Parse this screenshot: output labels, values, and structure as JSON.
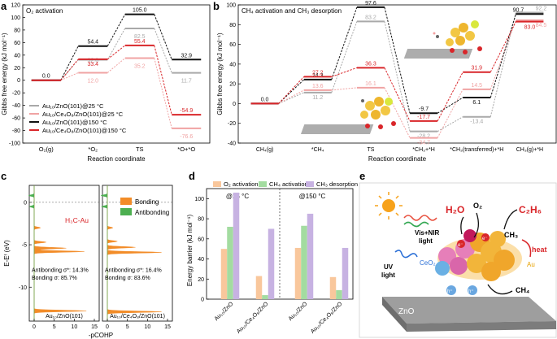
{
  "colors": {
    "gray": "#a9a9a9",
    "pink": "#f0a3a3",
    "black": "#111111",
    "red": "#d9262a",
    "o2": "#f9c79c",
    "ch4": "#a3dca0",
    "ch3": "#c7b2e2",
    "bonding": "#f28c28",
    "antibonding": "#4caf50"
  },
  "panels": {
    "a": "a",
    "b": "b",
    "c": "c",
    "d": "d",
    "e": "e"
  },
  "chart_data": [
    {
      "panel": "a",
      "type": "line",
      "title": "O₂ activation",
      "xlabel": "Reaction coordinate",
      "ylabel": "Gibbs free energy (kJ mol⁻¹)",
      "ylim": [
        -100,
        120
      ],
      "yticks": [
        -100,
        -80,
        -60,
        -40,
        -20,
        0,
        20,
        40,
        60,
        80,
        100,
        120
      ],
      "categories": [
        "O₂(g)",
        "*O₂",
        "TS",
        "*O+*O"
      ],
      "series": [
        {
          "name": "Au₁₀/ZnO(101)@25 °C",
          "key": "gray",
          "values": [
            0.0,
            32.6,
            82.5,
            11.7
          ],
          "labels": [
            "",
            "32.6",
            "82.5",
            "11.7"
          ]
        },
        {
          "name": "Au₁₀/Ce₄O₈/ZnO(101)@25 °C",
          "key": "pink",
          "values": [
            0.0,
            12.0,
            35.2,
            -76.6
          ],
          "labels": [
            "",
            "12.0",
            "35.2",
            "-76.6"
          ]
        },
        {
          "name": "Au₁₀/ZnO(101)@150 °C",
          "key": "black",
          "values": [
            0.0,
            54.4,
            105.0,
            32.9
          ],
          "labels": [
            "0.0",
            "54.4",
            "105.0",
            "32.9"
          ]
        },
        {
          "name": "Au₁₀/Ce₄O₈/ZnO(101)@150 °C",
          "key": "red",
          "values": [
            0.0,
            33.4,
            55.4,
            -54.9
          ],
          "labels": [
            "",
            "33.4",
            "55.4",
            "-54.9"
          ]
        }
      ]
    },
    {
      "panel": "b",
      "type": "line",
      "title": "CH₄ activation and CH₃ desorption",
      "xlabel": "Reaction coordinate",
      "ylabel": "Gibbs free energy (kJ mol⁻¹)",
      "ylim": [
        -40,
        100
      ],
      "yticks": [
        -40,
        -20,
        0,
        20,
        40,
        60,
        80,
        100
      ],
      "categories": [
        "CH₄(g)",
        "*CH₄",
        "TS",
        "*CH₃+*H",
        "*CH₃(transferred)+*H",
        "CH₃(g)+*H"
      ],
      "series": [
        {
          "name": "Au₁₀/ZnO(101)@25 °C",
          "key": "gray",
          "values": [
            0.0,
            11.2,
            83.2,
            -28.2,
            -13.4,
            92.2
          ],
          "labels": [
            "",
            "11.2",
            "83.2",
            "-28.2",
            "-13.4",
            "92.2"
          ]
        },
        {
          "name": "Au₁₀/Ce₄O₈/ZnO(101)@25 °C",
          "key": "pink",
          "values": [
            0.0,
            13.6,
            16.1,
            -34.7,
            14.5,
            84.5
          ],
          "labels": [
            "",
            "13.6",
            "16.1",
            "-34.7",
            "14.5",
            "84.5"
          ]
        },
        {
          "name": "Au₁₀/ZnO(101)@150 °C",
          "key": "black",
          "values": [
            0.0,
            24.3,
            97.6,
            -9.7,
            6.1,
            90.7
          ],
          "labels": [
            "0.0",
            "24.3",
            "97.6",
            "-9.7",
            "6.1",
            "90.7"
          ]
        },
        {
          "name": "Au₁₀/Ce₄O₈/ZnO(101)@150 °C",
          "key": "red",
          "values": [
            0.0,
            27.2,
            36.3,
            -17.7,
            31.9,
            83.0
          ],
          "labels": [
            "",
            "27.2",
            "36.3",
            "-17.7",
            "31.9",
            "83.0"
          ]
        }
      ]
    },
    {
      "panel": "c",
      "type": "line",
      "title": "H₃C-Au",
      "xlabel": "-pCOHP",
      "ylabel": "E-Eᶠ (eV)",
      "ylim": [
        -14,
        2
      ],
      "yticks": [
        0,
        -5,
        -10
      ],
      "xticks": [
        0,
        5,
        10,
        15
      ],
      "legend": [
        "Bonding",
        "Antibonding"
      ],
      "subplots": [
        {
          "name": "Au₁₀/ZnO(101)",
          "antibonding_pct": "Antibonding σ*: 14.3%",
          "bonding_pct": "Bonding σ: 85.7%",
          "peaks": [
            {
              "e": -5.8,
              "v": 12.5
            },
            {
              "e": -5.4,
              "v": 8
            },
            {
              "e": -4.7,
              "v": 3
            },
            {
              "e": -3.0,
              "v": 1.6
            },
            {
              "e": -12.8,
              "v": 13
            },
            {
              "e": -0.5,
              "v": -1.2
            },
            {
              "e": 0.8,
              "v": -1.4
            }
          ]
        },
        {
          "name": "Au₁₀/Ce₄O₈/ZnO(101)",
          "antibonding_pct": "Antibonding σ*: 16.4%",
          "bonding_pct": "Bonding σ: 83.6%",
          "peaks": [
            {
              "e": -5.9,
              "v": 13.5
            },
            {
              "e": -5.3,
              "v": 7
            },
            {
              "e": -4.6,
              "v": 2.5
            },
            {
              "e": -3.0,
              "v": 1.4
            },
            {
              "e": -12.9,
              "v": 13.5
            },
            {
              "e": -0.5,
              "v": -1.5
            },
            {
              "e": 0.8,
              "v": -1.6
            }
          ]
        }
      ]
    },
    {
      "panel": "d",
      "type": "bar",
      "title": "",
      "ylabel": "Energy barrier (kJ mol⁻¹)",
      "ylim": [
        0,
        110
      ],
      "yticks": [
        0,
        20,
        40,
        60,
        80,
        100
      ],
      "legend": [
        "O₂ activation",
        "CH₄ activation",
        "CH₃ desorption"
      ],
      "groups": [
        {
          "condition": "@25 °C",
          "categories": [
            "Au₁₀/ZnO",
            "Au₁₀/Ce₄O₈/ZnO"
          ]
        },
        {
          "condition": "@150 °C",
          "categories": [
            "Au₁₀/ZnO",
            "Au₁₀/Ce₄O₈/ZnO"
          ]
        }
      ],
      "series": [
        {
          "name": "O₂ activation",
          "key": "o2",
          "values": [
            50,
            23,
            51,
            22
          ]
        },
        {
          "name": "CH₄ activation",
          "key": "ch4",
          "values": [
            72,
            4,
            73,
            9
          ]
        },
        {
          "name": "CH₃ desorption",
          "key": "ch3",
          "values": [
            106,
            70,
            85,
            51
          ]
        }
      ]
    }
  ],
  "schematic": {
    "h2o": "H₂O",
    "o2": "O₂",
    "c2h6": "C₂H₆",
    "ch3": "CH₃",
    "ch4": "CH₄",
    "heat": "heat",
    "visnir": "Vis+NIR",
    "light": "light",
    "uv": "UV",
    "ceo2": "CeO₂",
    "au": "Au",
    "zno": "ZnO",
    "e": "e⁻",
    "h": "h⁺"
  }
}
